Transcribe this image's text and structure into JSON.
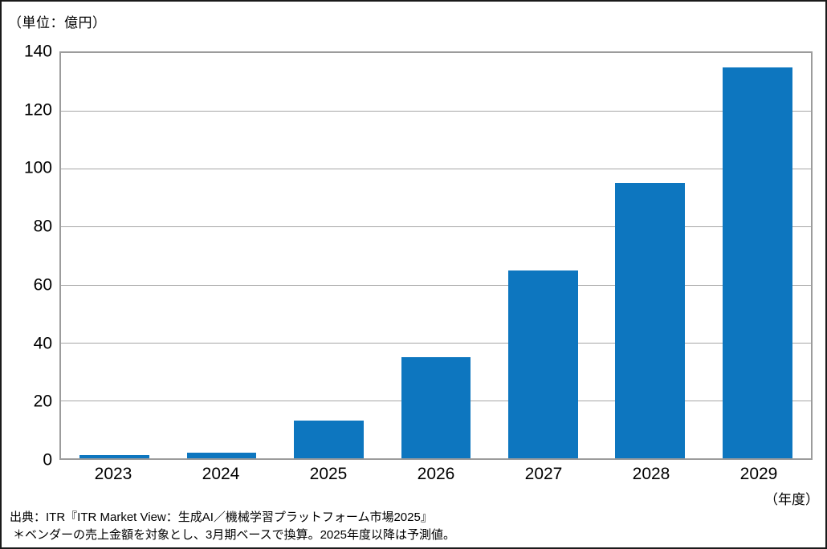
{
  "colors": {
    "bar": "#0d76bf",
    "gridline": "#a6a6a6",
    "plot_border": "#9c9c9c",
    "frame": "#1a1a1a",
    "text": "#000000"
  },
  "axes": {
    "unit_label": "（単位：億円）",
    "x_unit_label": "（年度）"
  },
  "footer": {
    "source": "出典：ITR『ITR Market View：生成AI／機械学習プラットフォーム市場2025』",
    "note": "＊ベンダーの売上金額を対象とし、3月期ベースで換算。2025年度以降は予測値。"
  },
  "chart_data": {
    "type": "bar",
    "title": "",
    "categories": [
      "2023",
      "2024",
      "2025",
      "2026",
      "2027",
      "2028",
      "2029"
    ],
    "values": [
      1,
      2,
      13,
      35,
      65,
      95,
      135
    ],
    "xlabel": "（年度）",
    "ylabel": "（単位：億円）",
    "ylim": [
      0,
      140
    ],
    "yticks": [
      0,
      20,
      40,
      60,
      80,
      100,
      120,
      140
    ],
    "grid": "horizontal",
    "legend": "none",
    "bar_width_ratio": 0.65,
    "notes": [
      "出典：ITR『ITR Market View：生成AI／機械学習プラットフォーム市場2025』",
      "＊ベンダーの売上金額を対象とし、3月期ベースで換算。2025年度以降は予測値。"
    ]
  }
}
